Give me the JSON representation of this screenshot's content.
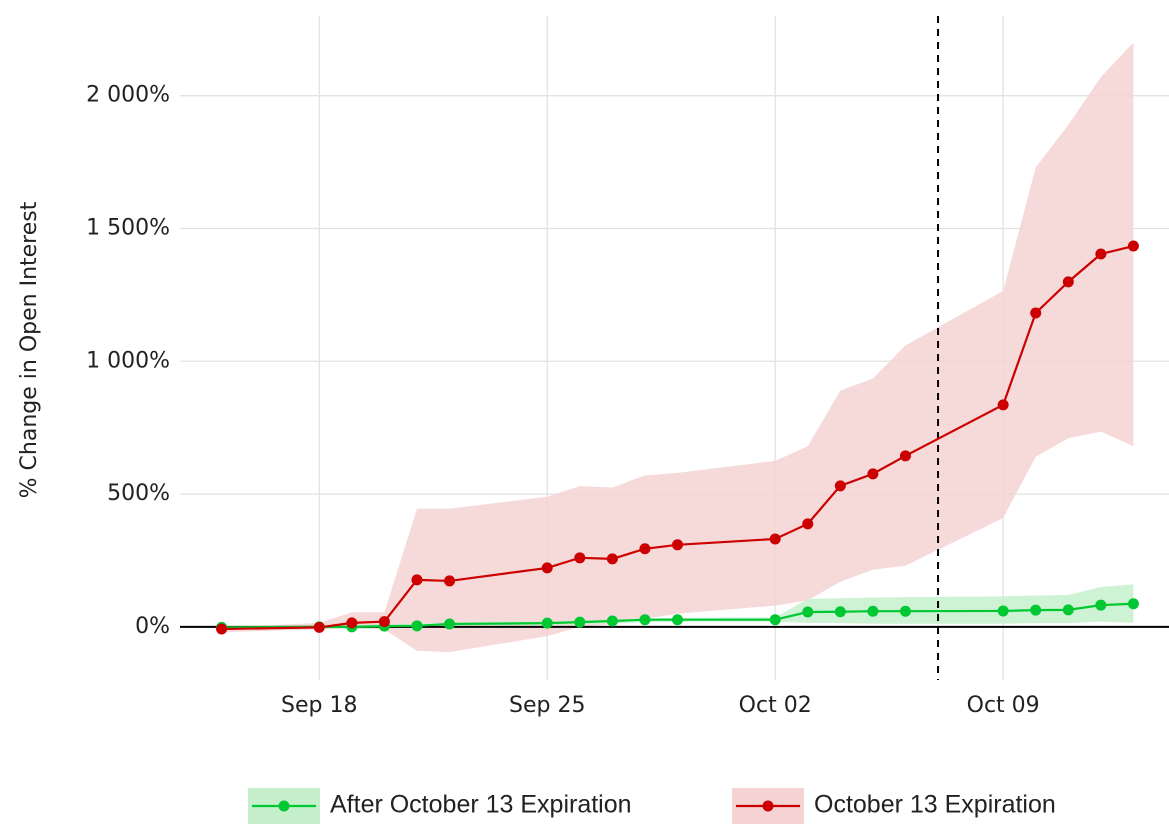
{
  "chart_data": {
    "type": "line",
    "y_label": "% Change in Open Interest",
    "x": [
      "09-15",
      "09-18",
      "09-19",
      "09-20",
      "09-21",
      "09-22",
      "09-25",
      "09-26",
      "09-27",
      "09-28",
      "09-29",
      "10-02",
      "10-03",
      "10-04",
      "10-05",
      "10-06",
      "10-09",
      "10-10",
      "10-11",
      "10-12",
      "10-13"
    ],
    "xlim": [
      "09-14",
      "10-14"
    ],
    "xticks": [
      {
        "value": "09-18",
        "label": "Sep 18"
      },
      {
        "value": "09-25",
        "label": "Sep 25"
      },
      {
        "value": "10-02",
        "label": "Oct 02"
      },
      {
        "value": "10-09",
        "label": "Oct 09"
      }
    ],
    "ylim": [
      -200,
      2300
    ],
    "yticks": [
      {
        "value": 0,
        "label": "0%"
      },
      {
        "value": 500,
        "label": "500%"
      },
      {
        "value": 1000,
        "label": "1 000%"
      },
      {
        "value": 1500,
        "label": "1 500%"
      },
      {
        "value": 2000,
        "label": "2 000%"
      }
    ],
    "grid": true,
    "vline": "10-07",
    "legend": "bottom",
    "series": [
      {
        "name": "After October 13 Expiration",
        "color": "#00c832",
        "band_color": "#c6f0cc",
        "values": [
          -2,
          0,
          0,
          3,
          4,
          11,
          14,
          18,
          22,
          27,
          27,
          27,
          56,
          57,
          59,
          59,
          60,
          63,
          64,
          82,
          87
        ],
        "upper": [
          3,
          5,
          8,
          8,
          12,
          18,
          20,
          25,
          28,
          32,
          34,
          36,
          105,
          108,
          110,
          112,
          115,
          118,
          120,
          150,
          160
        ],
        "lower": [
          -5,
          -5,
          -8,
          -5,
          -4,
          3,
          6,
          10,
          13,
          18,
          20,
          20,
          15,
          14,
          12,
          12,
          12,
          14,
          14,
          20,
          15
        ]
      },
      {
        "name": "October 13 Expiration",
        "color": "#cc0000",
        "band_color": "#f5d3d3",
        "values": [
          -8,
          -2,
          15,
          20,
          177,
          173,
          222,
          260,
          256,
          294,
          309,
          331,
          388,
          531,
          576,
          644,
          836,
          1182,
          1299,
          1404,
          1434
        ],
        "upper": [
          -3,
          15,
          55,
          55,
          445,
          445,
          490,
          530,
          525,
          570,
          580,
          625,
          680,
          890,
          935,
          1060,
          1265,
          1730,
          1890,
          2070,
          2200
        ],
        "lower": [
          -20,
          -10,
          -5,
          -10,
          -90,
          -95,
          -35,
          0,
          10,
          30,
          50,
          80,
          100,
          170,
          215,
          230,
          410,
          640,
          710,
          735,
          680
        ]
      }
    ]
  }
}
